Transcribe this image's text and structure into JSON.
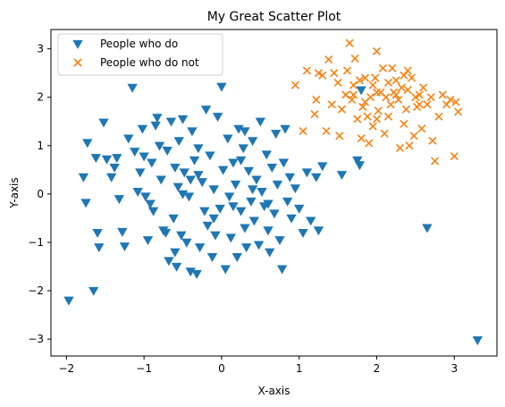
{
  "chart_data": {
    "type": "scatter",
    "title": "My Great Scatter Plot",
    "xlabel": "X-axis",
    "ylabel": "Y-axis",
    "xlim": [
      -2.2,
      3.55
    ],
    "ylim": [
      -3.35,
      3.4
    ],
    "xticks": [
      -2,
      -1,
      0,
      1,
      2,
      3
    ],
    "yticks": [
      -3,
      -2,
      -1,
      0,
      1,
      2,
      3
    ],
    "grid": false,
    "legend_position": "top-left",
    "series": [
      {
        "name": "People who do",
        "marker": "triangle-down",
        "color": "#1f77b4",
        "points": [
          [
            -1.97,
            -2.2
          ],
          [
            -1.65,
            -2.0
          ],
          [
            -1.75,
            -0.18
          ],
          [
            -1.78,
            0.35
          ],
          [
            -1.73,
            1.06
          ],
          [
            -1.62,
            0.75
          ],
          [
            -1.6,
            -0.8
          ],
          [
            -1.58,
            -1.1
          ],
          [
            -1.52,
            1.48
          ],
          [
            -1.48,
            0.72
          ],
          [
            -1.42,
            0.35
          ],
          [
            -1.38,
            0.55
          ],
          [
            -1.35,
            0.75
          ],
          [
            -1.32,
            -0.1
          ],
          [
            -1.28,
            -0.78
          ],
          [
            -1.25,
            -1.08
          ],
          [
            -1.2,
            1.15
          ],
          [
            -1.15,
            2.2
          ],
          [
            -1.12,
            0.88
          ],
          [
            -1.08,
            0.05
          ],
          [
            -1.05,
            0.45
          ],
          [
            -1.02,
            1.35
          ],
          [
            -1.0,
            0.78
          ],
          [
            -0.98,
            -0.05
          ],
          [
            -0.95,
            -0.95
          ],
          [
            -0.92,
            -0.2
          ],
          [
            -0.9,
            0.65
          ],
          [
            -0.88,
            -0.35
          ],
          [
            -0.85,
            1.42
          ],
          [
            -0.83,
            1.58
          ],
          [
            -0.8,
            1.0
          ],
          [
            -0.78,
            0.3
          ],
          [
            -0.75,
            -0.75
          ],
          [
            -0.72,
            -0.8
          ],
          [
            -0.7,
            0.9
          ],
          [
            -0.68,
            -1.38
          ],
          [
            -0.65,
            1.5
          ],
          [
            -0.62,
            -0.5
          ],
          [
            -0.6,
            0.55
          ],
          [
            -0.58,
            -1.5
          ],
          [
            -0.56,
            0.15
          ],
          [
            -0.55,
            1.1
          ],
          [
            -0.52,
            -0.85
          ],
          [
            -0.5,
            1.55
          ],
          [
            -0.48,
            0.45
          ],
          [
            -0.45,
            -1.0
          ],
          [
            -0.42,
            -0.05
          ],
          [
            -0.4,
            0.3
          ],
          [
            -0.38,
            1.3
          ],
          [
            -0.35,
            0.7
          ],
          [
            -0.32,
            -1.65
          ],
          [
            -0.3,
            0.95
          ],
          [
            -0.28,
            -1.1
          ],
          [
            -0.25,
            0.25
          ],
          [
            -0.22,
            -0.35
          ],
          [
            -0.2,
            1.75
          ],
          [
            -0.18,
            -0.65
          ],
          [
            -0.15,
            0.8
          ],
          [
            -0.12,
            -1.3
          ],
          [
            -0.1,
            0.1
          ],
          [
            -0.08,
            -0.85
          ],
          [
            -0.05,
            1.6
          ],
          [
            -0.02,
            -0.3
          ],
          [
            0.0,
            2.22
          ],
          [
            0.02,
            0.5
          ],
          [
            0.05,
            -1.55
          ],
          [
            0.08,
            1.15
          ],
          [
            0.1,
            -0.05
          ],
          [
            0.12,
            -0.9
          ],
          [
            0.15,
            0.65
          ],
          [
            0.18,
            0.2
          ],
          [
            0.2,
            -1.3
          ],
          [
            0.22,
            1.35
          ],
          [
            0.25,
            -0.35
          ],
          [
            0.28,
            0.95
          ],
          [
            0.3,
            -0.7
          ],
          [
            0.32,
            -1.1
          ],
          [
            0.35,
            0.48
          ],
          [
            0.38,
            -0.15
          ],
          [
            0.4,
            1.1
          ],
          [
            0.42,
            -0.55
          ],
          [
            0.45,
            0.3
          ],
          [
            0.48,
            -1.05
          ],
          [
            0.5,
            1.5
          ],
          [
            0.52,
            0.05
          ],
          [
            0.55,
            -0.25
          ],
          [
            0.58,
            0.82
          ],
          [
            0.6,
            -0.75
          ],
          [
            0.62,
            -1.2
          ],
          [
            0.65,
            0.55
          ],
          [
            0.68,
            -0.4
          ],
          [
            0.7,
            1.25
          ],
          [
            0.72,
            0.2
          ],
          [
            0.75,
            -0.95
          ],
          [
            0.78,
            -1.55
          ],
          [
            0.8,
            0.65
          ],
          [
            0.82,
            1.35
          ],
          [
            0.85,
            -0.15
          ],
          [
            0.88,
            0.35
          ],
          [
            0.9,
            -0.5
          ],
          [
            0.95,
            0.12
          ],
          [
            1.0,
            -0.3
          ],
          [
            1.05,
            -0.8
          ],
          [
            1.1,
            0.45
          ],
          [
            1.15,
            -0.55
          ],
          [
            1.22,
            0.35
          ],
          [
            1.25,
            -0.75
          ],
          [
            1.3,
            0.58
          ],
          [
            1.55,
            0.4
          ],
          [
            1.75,
            0.7
          ],
          [
            1.78,
            0.6
          ],
          [
            1.8,
            2.15
          ],
          [
            2.65,
            -0.7
          ],
          [
            3.3,
            -3.02
          ],
          [
            -0.6,
            -1.2
          ],
          [
            -0.4,
            -1.6
          ],
          [
            0.3,
            1.3
          ],
          [
            -0.1,
            -0.5
          ],
          [
            0.4,
            0.1
          ],
          [
            0.15,
            -0.25
          ],
          [
            -0.3,
            0.4
          ],
          [
            0.6,
            -0.2
          ],
          [
            -0.5,
            0.0
          ],
          [
            0.25,
            0.7
          ]
        ]
      },
      {
        "name": "People who do not",
        "marker": "x",
        "color": "#ff7f0e",
        "points": [
          [
            0.95,
            2.25
          ],
          [
            1.05,
            1.3
          ],
          [
            1.1,
            2.55
          ],
          [
            1.2,
            1.65
          ],
          [
            1.22,
            1.95
          ],
          [
            1.25,
            2.5
          ],
          [
            1.3,
            2.45
          ],
          [
            1.35,
            1.3
          ],
          [
            1.38,
            2.78
          ],
          [
            1.42,
            1.85
          ],
          [
            1.45,
            2.5
          ],
          [
            1.5,
            2.3
          ],
          [
            1.52,
            1.2
          ],
          [
            1.55,
            1.75
          ],
          [
            1.6,
            2.05
          ],
          [
            1.62,
            2.55
          ],
          [
            1.65,
            3.12
          ],
          [
            1.68,
            1.95
          ],
          [
            1.7,
            2.25
          ],
          [
            1.72,
            2.8
          ],
          [
            1.75,
            1.55
          ],
          [
            1.78,
            2.35
          ],
          [
            1.8,
            1.15
          ],
          [
            1.82,
            1.8
          ],
          [
            1.85,
            2.4
          ],
          [
            1.88,
            1.6
          ],
          [
            1.9,
            1.05
          ],
          [
            1.92,
            2.0
          ],
          [
            1.95,
            1.4
          ],
          [
            1.98,
            2.4
          ],
          [
            2.0,
            2.95
          ],
          [
            2.02,
            1.72
          ],
          [
            2.05,
            2.1
          ],
          [
            2.08,
            2.6
          ],
          [
            2.1,
            1.25
          ],
          [
            2.12,
            2.0
          ],
          [
            2.15,
            2.3
          ],
          [
            2.18,
            1.85
          ],
          [
            2.2,
            2.6
          ],
          [
            2.22,
            2.1
          ],
          [
            2.25,
            2.35
          ],
          [
            2.28,
            1.95
          ],
          [
            2.3,
            0.95
          ],
          [
            2.32,
            2.2
          ],
          [
            2.35,
            1.45
          ],
          [
            2.38,
            1.75
          ],
          [
            2.4,
            2.15
          ],
          [
            2.42,
            1.0
          ],
          [
            2.45,
            2.4
          ],
          [
            2.48,
            1.2
          ],
          [
            2.5,
            2.0
          ],
          [
            2.52,
            1.8
          ],
          [
            2.55,
            1.85
          ],
          [
            2.58,
            1.35
          ],
          [
            2.6,
            2.2
          ],
          [
            2.65,
            1.85
          ],
          [
            2.7,
            2.0
          ],
          [
            2.72,
            1.1
          ],
          [
            2.75,
            0.68
          ],
          [
            2.8,
            1.6
          ],
          [
            2.85,
            2.05
          ],
          [
            2.9,
            1.85
          ],
          [
            2.95,
            1.95
          ],
          [
            3.0,
            0.78
          ],
          [
            3.02,
            1.9
          ],
          [
            3.05,
            1.7
          ],
          [
            1.85,
            1.9
          ],
          [
            2.0,
            2.1
          ],
          [
            2.15,
            1.6
          ],
          [
            2.4,
            2.55
          ],
          [
            2.0,
            1.55
          ],
          [
            1.7,
            2.05
          ],
          [
            2.25,
            2.05
          ],
          [
            1.95,
            2.25
          ],
          [
            2.35,
            2.45
          ],
          [
            2.55,
            2.05
          ]
        ]
      }
    ]
  }
}
